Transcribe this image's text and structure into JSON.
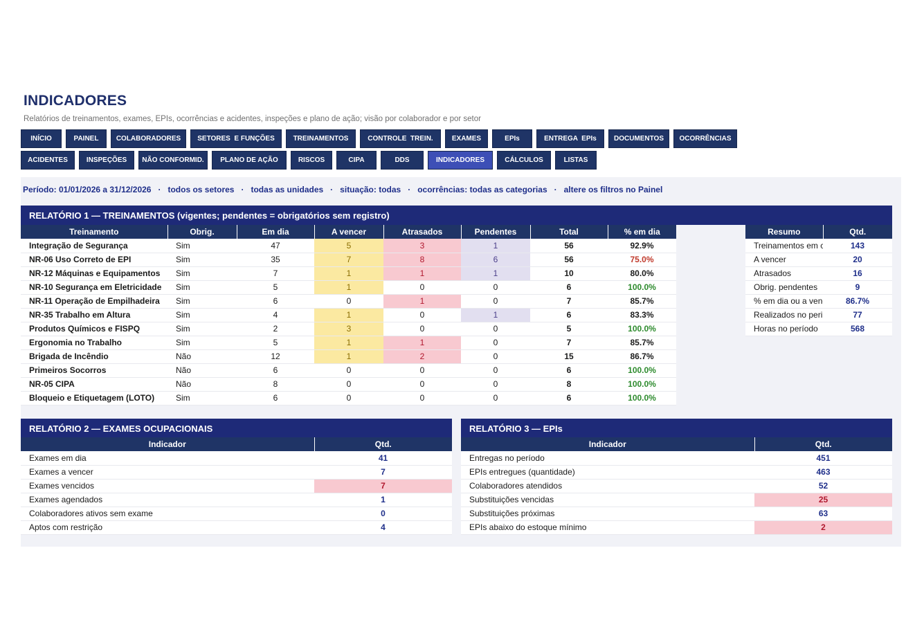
{
  "header": {
    "title": "INDICADORES",
    "subtitle": "Relatórios de treinamentos, exames, EPIs, ocorrências e acidentes, inspeções e plano de ação; visão por colaborador e por setor"
  },
  "nav": {
    "row1": [
      "INÍCIO",
      "PAINEL",
      "COLABORADORES",
      "SETORES  E FUNÇÕES",
      "TREINAMENTOS",
      "CONTROLE  TREIN.",
      "EXAMES",
      "EPIs",
      "ENTREGA  EPIs",
      "DOCUMENTOS",
      "OCORRÊNCIAS"
    ],
    "row2": [
      "ACIDENTES",
      "INSPEÇÕES",
      "NÃO CONFORMID.",
      "PLANO DE AÇÃO",
      "RISCOS",
      "CIPA",
      "DDS",
      "INDICADORES",
      "CÁLCULOS",
      "LISTAS"
    ],
    "active": "INDICADORES"
  },
  "filters": "Período: 01/01/2026 a 31/12/2026   ·   todos os setores   ·   todas as unidades   ·   situação: todas   ·   ocorrências: todas as categorias   ·   altere os filtros no Painel",
  "report1": {
    "title": "RELATÓRIO 1 — TREINAMENTOS (vigentes; pendentes = obrigatórios sem registro)",
    "columns": [
      "Treinamento",
      "Obrig.",
      "Em dia",
      "A vencer",
      "Atrasados",
      "Pendentes",
      "Total",
      "% em dia"
    ],
    "rows": [
      [
        "Integração de Segurança",
        "Sim",
        "47",
        "5",
        "3",
        "1",
        "56",
        "92.9%"
      ],
      [
        "NR-06 Uso Correto de EPI",
        "Sim",
        "35",
        "7",
        "8",
        "6",
        "56",
        "75.0%"
      ],
      [
        "NR-12 Máquinas e Equipamentos",
        "Sim",
        "7",
        "1",
        "1",
        "1",
        "10",
        "80.0%"
      ],
      [
        "NR-10 Segurança em Eletricidade",
        "Sim",
        "5",
        "1",
        "0",
        "0",
        "6",
        "100.0%"
      ],
      [
        "NR-11 Operação de Empilhadeira",
        "Sim",
        "6",
        "0",
        "1",
        "0",
        "7",
        "85.7%"
      ],
      [
        "NR-35 Trabalho em Altura",
        "Sim",
        "4",
        "1",
        "0",
        "1",
        "6",
        "83.3%"
      ],
      [
        "Produtos Químicos e FISPQ",
        "Sim",
        "2",
        "3",
        "0",
        "0",
        "5",
        "100.0%"
      ],
      [
        "Ergonomia no Trabalho",
        "Sim",
        "5",
        "1",
        "1",
        "0",
        "7",
        "85.7%"
      ],
      [
        "Brigada de Incêndio",
        "Não",
        "12",
        "1",
        "2",
        "0",
        "15",
        "86.7%"
      ],
      [
        "Primeiros Socorros",
        "Não",
        "6",
        "0",
        "0",
        "0",
        "6",
        "100.0%"
      ],
      [
        "NR-05 CIPA",
        "Não",
        "8",
        "0",
        "0",
        "0",
        "8",
        "100.0%"
      ],
      [
        "Bloqueio e Etiquetagem (LOTO)",
        "Sim",
        "6",
        "0",
        "0",
        "0",
        "6",
        "100.0%"
      ]
    ],
    "summary": {
      "columns": [
        "Resumo",
        "Qtd."
      ],
      "rows": [
        [
          "Treinamentos em c",
          "143"
        ],
        [
          "A vencer",
          "20"
        ],
        [
          "Atrasados",
          "16"
        ],
        [
          "Obrig. pendentes",
          "9"
        ],
        [
          "% em dia ou a venc",
          "86.7%"
        ],
        [
          "Realizados no peri",
          "77"
        ],
        [
          "Horas no período",
          "568"
        ]
      ]
    }
  },
  "report2": {
    "title": "RELATÓRIO 2 — EXAMES OCUPACIONAIS",
    "columns": [
      "Indicador",
      "Qtd."
    ],
    "rows": [
      [
        "Exames em dia",
        "41"
      ],
      [
        "Exames a vencer",
        "7"
      ],
      [
        "Exames vencidos",
        "7"
      ],
      [
        "Exames agendados",
        "1"
      ],
      [
        "Colaboradores ativos sem exame",
        "0"
      ],
      [
        "Aptos com restrição",
        "4"
      ]
    ]
  },
  "report3": {
    "title": "RELATÓRIO 3 — EPIs",
    "columns": [
      "Indicador",
      "Qtd."
    ],
    "rows": [
      [
        "Entregas no período",
        "451"
      ],
      [
        "EPIs entregues (quantidade)",
        "463"
      ],
      [
        "Colaboradores atendidos",
        "52"
      ],
      [
        "Substituições vencidas",
        "25"
      ],
      [
        "Substituições próximas",
        "63"
      ],
      [
        "EPIs abaixo do estoque mínimo",
        "2"
      ]
    ]
  },
  "colors": {
    "nav": "#1f3466",
    "nav_active": "#3d4fb6",
    "section_header": "#1e2a78",
    "warn_yellow": "#fbe9a1",
    "alert_pink": "#f8c9d0",
    "pending_lilac": "#e2dff0",
    "ok_green": "#2e8b2e",
    "bad_red": "#c0392b"
  }
}
